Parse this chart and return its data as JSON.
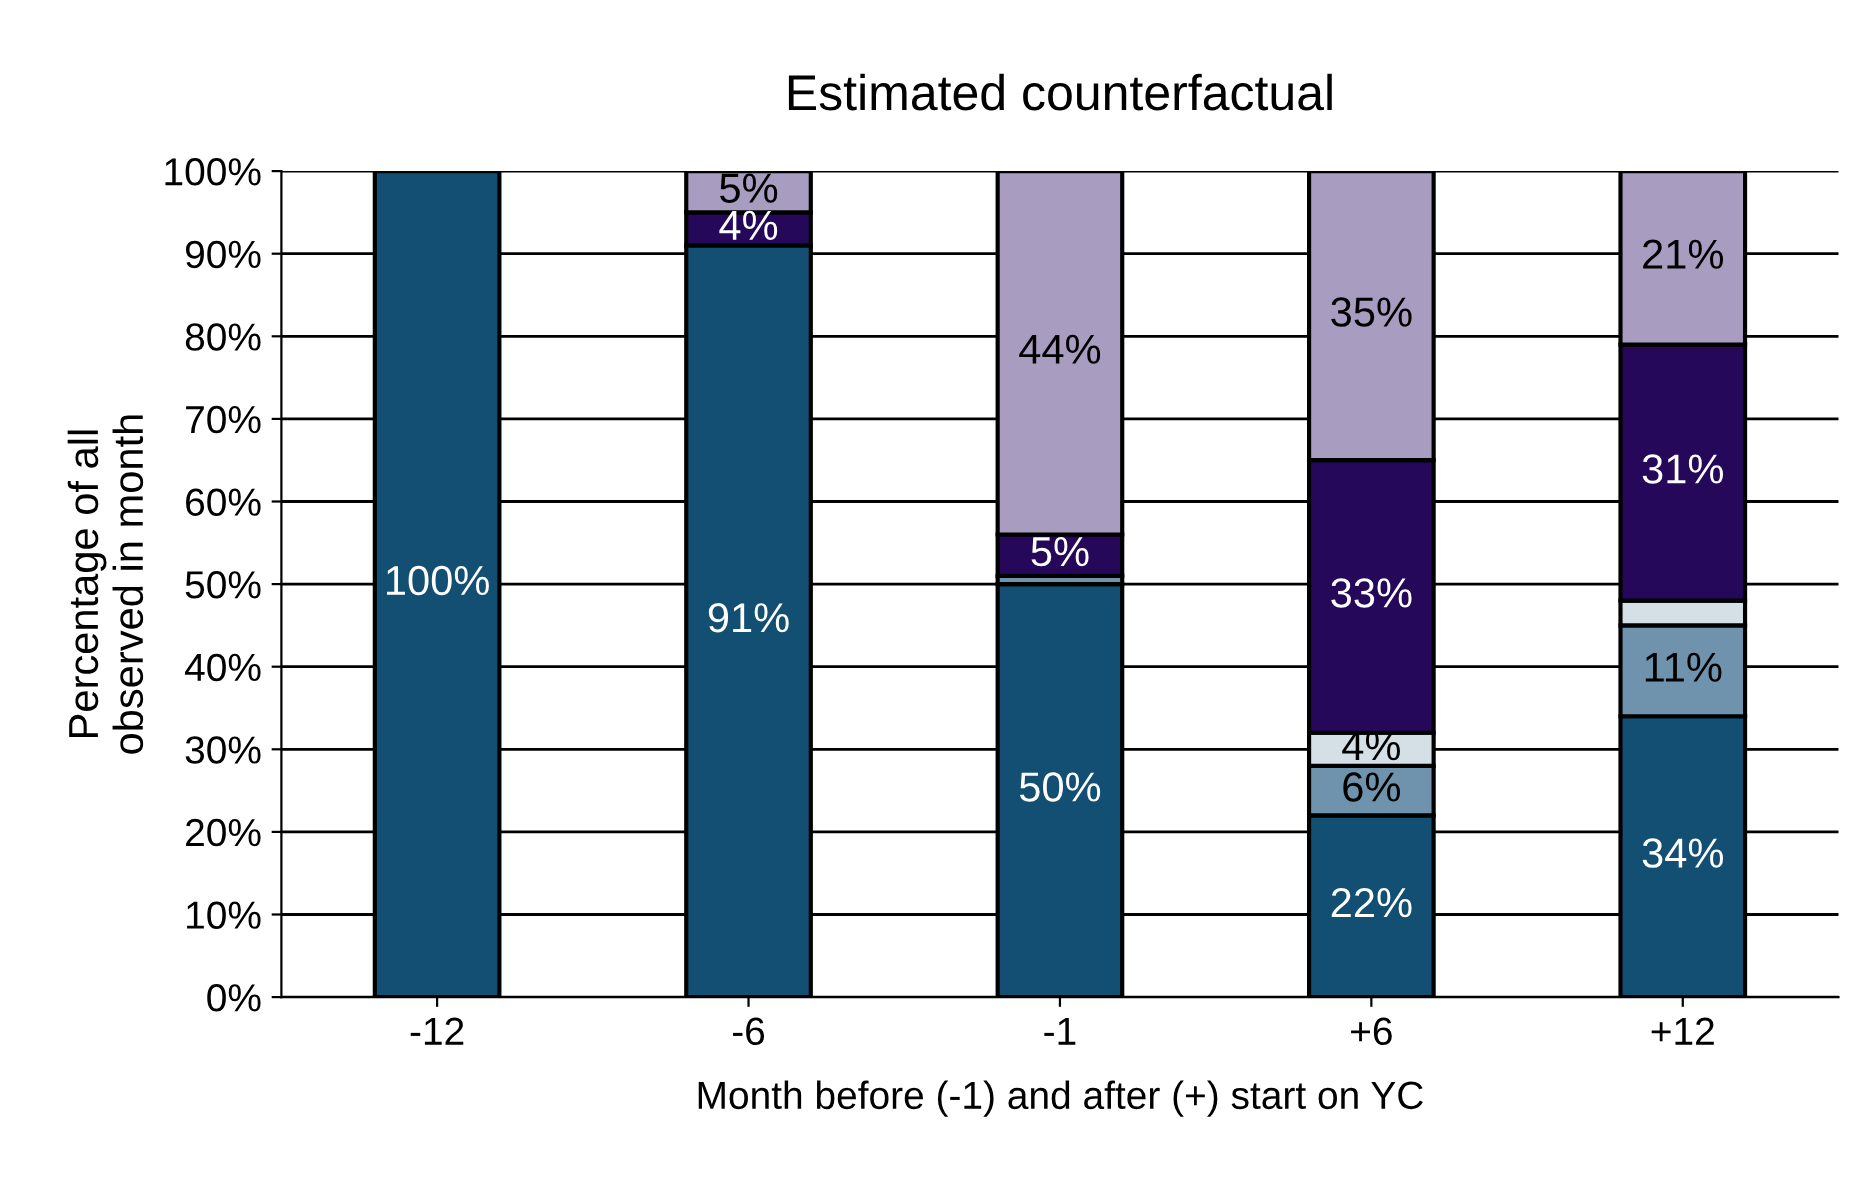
{
  "chart_data": {
    "type": "bar",
    "title": "Estimated counterfactual",
    "xlabel": "Month before (-1) and after (+) start on YC",
    "ylabel": "Percentage of all\nobserved in month",
    "categories": [
      "-12",
      "-6",
      "-1",
      "+6",
      "+12"
    ],
    "stacked": true,
    "grid": "y",
    "legend": false,
    "ylim": [
      0,
      100
    ],
    "yticks": [
      {
        "value": 0,
        "label": "0%"
      },
      {
        "value": 10,
        "label": "10%"
      },
      {
        "value": 20,
        "label": "20%"
      },
      {
        "value": 30,
        "label": "30%"
      },
      {
        "value": 40,
        "label": "40%"
      },
      {
        "value": 50,
        "label": "50%"
      },
      {
        "value": 60,
        "label": "60%"
      },
      {
        "value": 70,
        "label": "70%"
      },
      {
        "value": 80,
        "label": "80%"
      },
      {
        "value": 90,
        "label": "90%"
      },
      {
        "value": 100,
        "label": "100%"
      }
    ],
    "series": [
      {
        "color": "#134f73",
        "values": [
          100,
          91,
          50,
          22,
          34
        ],
        "value_labels": [
          "100%",
          "91%",
          "50%",
          "22%",
          "34%"
        ]
      },
      {
        "color": "#6f93ad",
        "values": [
          null,
          null,
          1,
          6,
          11
        ],
        "value_labels": [
          null,
          null,
          null,
          "6%",
          "11%"
        ]
      },
      {
        "color": "#d4e0e6",
        "values": [
          null,
          null,
          null,
          4,
          3
        ],
        "value_labels": [
          null,
          null,
          null,
          "4%",
          null
        ]
      },
      {
        "color": "#25085a",
        "values": [
          null,
          4,
          5,
          33,
          31
        ],
        "value_labels": [
          null,
          "4%",
          "5%",
          "33%",
          "31%"
        ]
      },
      {
        "color": "#a89cc0",
        "values": [
          null,
          5,
          44,
          35,
          21
        ],
        "value_labels": [
          null,
          "5%",
          "44%",
          "35%",
          "21%"
        ]
      }
    ]
  }
}
